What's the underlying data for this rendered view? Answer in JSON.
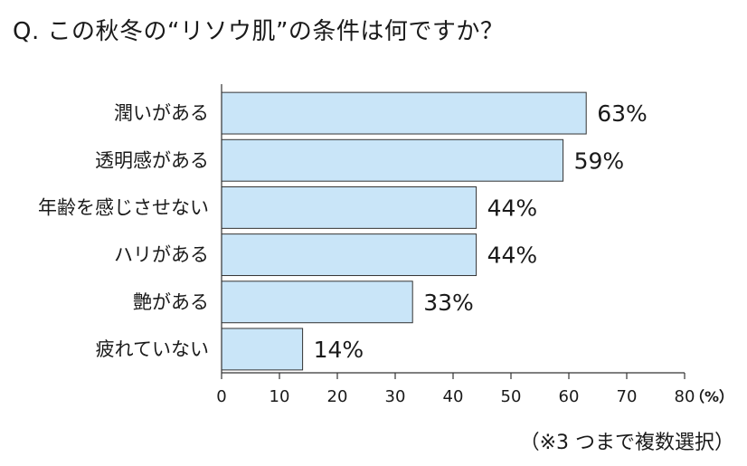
{
  "title": "Q. この秋冬の“リソウ肌”の条件は何ですか？",
  "note": "（※3 つまで複数選択）",
  "chart_data": {
    "type": "bar",
    "orientation": "horizontal",
    "title": "Q. この秋冬の“リソウ肌”の条件は何ですか？",
    "categories": [
      "潤いがある",
      "透明感がある",
      "年齢を感じさせない",
      "ハリがある",
      "艶がある",
      "疲れていない"
    ],
    "values": [
      63,
      59,
      44,
      44,
      33,
      14
    ],
    "value_labels": [
      "63%",
      "59%",
      "44%",
      "44%",
      "33%",
      "14%"
    ],
    "xlim": [
      0,
      80
    ],
    "x_ticks": [
      "0",
      "10",
      "20",
      "30",
      "40",
      "50",
      "60",
      "70",
      "80"
    ],
    "x_unit": "（%）",
    "grid": false,
    "bar_color": "#c9e5f8",
    "bar_edge_color": "#333333"
  }
}
